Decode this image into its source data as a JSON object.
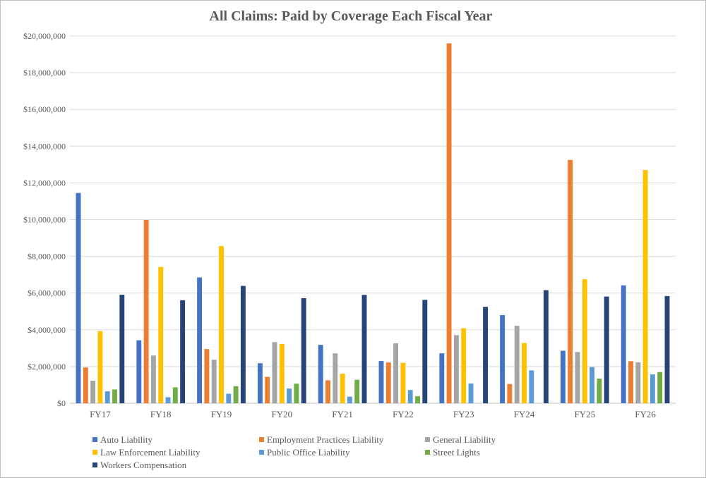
{
  "chart_data": {
    "type": "bar",
    "title": "All Claims: Paid by Coverage Each Fiscal Year",
    "xlabel": "",
    "ylabel": "",
    "ylim": [
      0,
      20000000
    ],
    "yticks": [
      0,
      2000000,
      4000000,
      6000000,
      8000000,
      10000000,
      12000000,
      14000000,
      16000000,
      18000000,
      20000000
    ],
    "ytick_labels": [
      "$0",
      "$2,000,000",
      "$4,000,000",
      "$6,000,000",
      "$8,000,000",
      "$10,000,000",
      "$12,000,000",
      "$14,000,000",
      "$16,000,000",
      "$18,000,000",
      "$20,000,000"
    ],
    "grid": true,
    "legend_position": "bottom",
    "categories": [
      "FY17",
      "FY18",
      "FY19",
      "FY20",
      "FY21",
      "FY22",
      "FY23",
      "FY24",
      "FY25",
      "FY26"
    ],
    "series": [
      {
        "name": "Auto Liability",
        "color": "#4472c4",
        "values": [
          11450000,
          3430000,
          6850000,
          2180000,
          3180000,
          2300000,
          2720000,
          4800000,
          2860000,
          6420000
        ]
      },
      {
        "name": "Employment Practices Liability",
        "color": "#ed7d31",
        "values": [
          1950000,
          9980000,
          2950000,
          1440000,
          1250000,
          2220000,
          19600000,
          1050000,
          13250000,
          2290000
        ]
      },
      {
        "name": "General Liability",
        "color": "#a5a5a5",
        "values": [
          1230000,
          2600000,
          2370000,
          3330000,
          2720000,
          3270000,
          3710000,
          4220000,
          2790000,
          2230000
        ]
      },
      {
        "name": "Law Enforcement Liability",
        "color": "#ffc000",
        "values": [
          3930000,
          7420000,
          8560000,
          3230000,
          1610000,
          2200000,
          4090000,
          3280000,
          6750000,
          12700000
        ]
      },
      {
        "name": "Public Office Liability",
        "color": "#5b9bd5",
        "values": [
          650000,
          330000,
          520000,
          800000,
          360000,
          720000,
          1080000,
          1790000,
          1970000,
          1570000
        ]
      },
      {
        "name": "Street Lights",
        "color": "#70ad47",
        "values": [
          750000,
          870000,
          930000,
          1070000,
          1280000,
          380000,
          0,
          0,
          1340000,
          1700000
        ]
      },
      {
        "name": "Workers Compensation",
        "color": "#264478",
        "values": [
          5910000,
          5610000,
          6390000,
          5720000,
          5900000,
          5630000,
          5250000,
          6160000,
          5810000,
          5840000
        ]
      }
    ]
  }
}
